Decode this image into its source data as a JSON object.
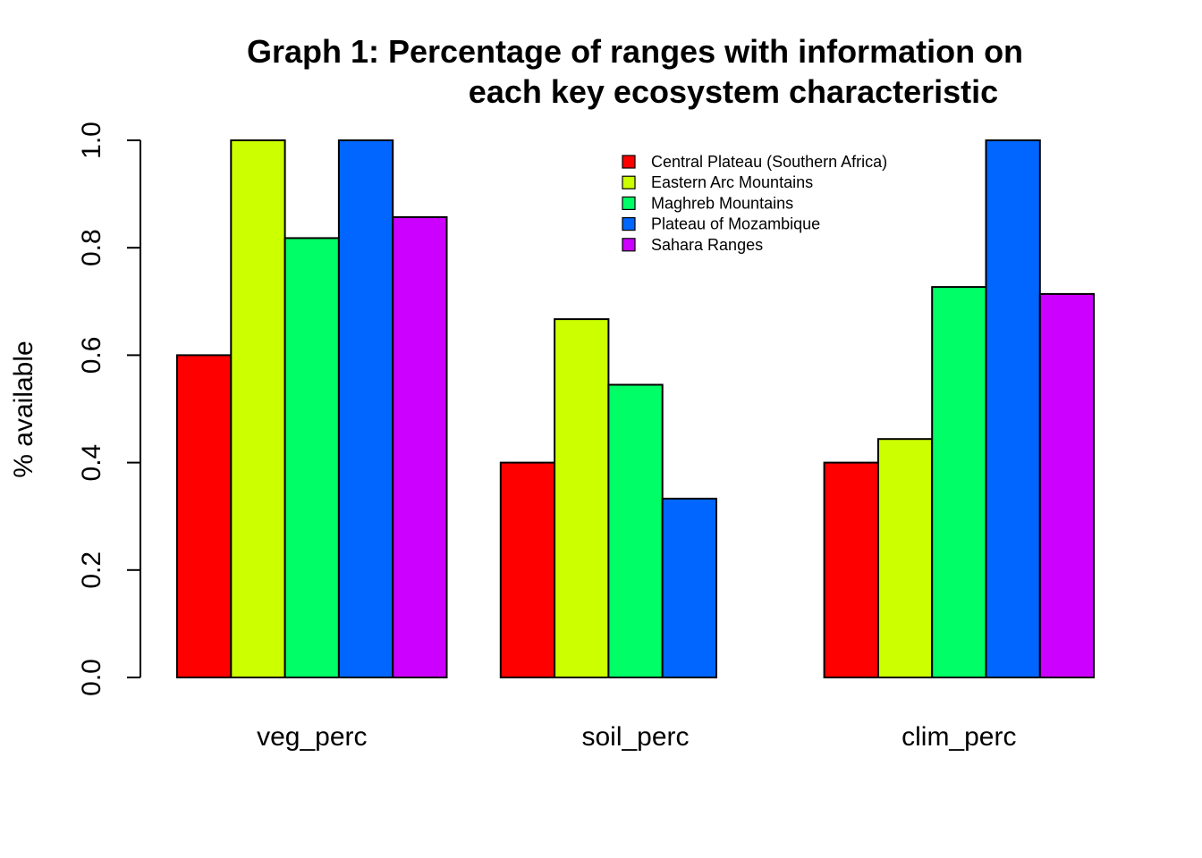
{
  "chart_data": {
    "type": "bar",
    "mode": "grouped",
    "title_lines": [
      "Graph 1: Percentage of ranges with information on",
      "each key ecosystem characteristic"
    ],
    "xlabel": "",
    "ylabel": "% available",
    "ylim": [
      0,
      1
    ],
    "y_ticks": [
      0.0,
      0.2,
      0.4,
      0.6,
      0.8,
      1.0
    ],
    "y_tick_labels": [
      "0.0",
      "0.2",
      "0.4",
      "0.6",
      "0.8",
      "1.0"
    ],
    "categories": [
      "veg_perc",
      "soil_perc",
      "clim_perc"
    ],
    "series": [
      {
        "name": "Central Plateau (Southern Africa)",
        "color": "#FF0000",
        "values": [
          0.6,
          0.4,
          0.4
        ]
      },
      {
        "name": "Eastern Arc Mountains",
        "color": "#CCFF00",
        "values": [
          1.0,
          0.667,
          0.444
        ]
      },
      {
        "name": "Maghreb Mountains",
        "color": "#00FF66",
        "values": [
          0.818,
          0.545,
          0.727
        ]
      },
      {
        "name": "Plateau of Mozambique",
        "color": "#0066FF",
        "values": [
          1.0,
          0.333,
          1.0
        ]
      },
      {
        "name": "Sahara Ranges",
        "color": "#CC00FF",
        "values": [
          0.857,
          0.0,
          0.714
        ]
      }
    ],
    "legend_position": "top-right",
    "legend_box": false,
    "grid": false
  }
}
